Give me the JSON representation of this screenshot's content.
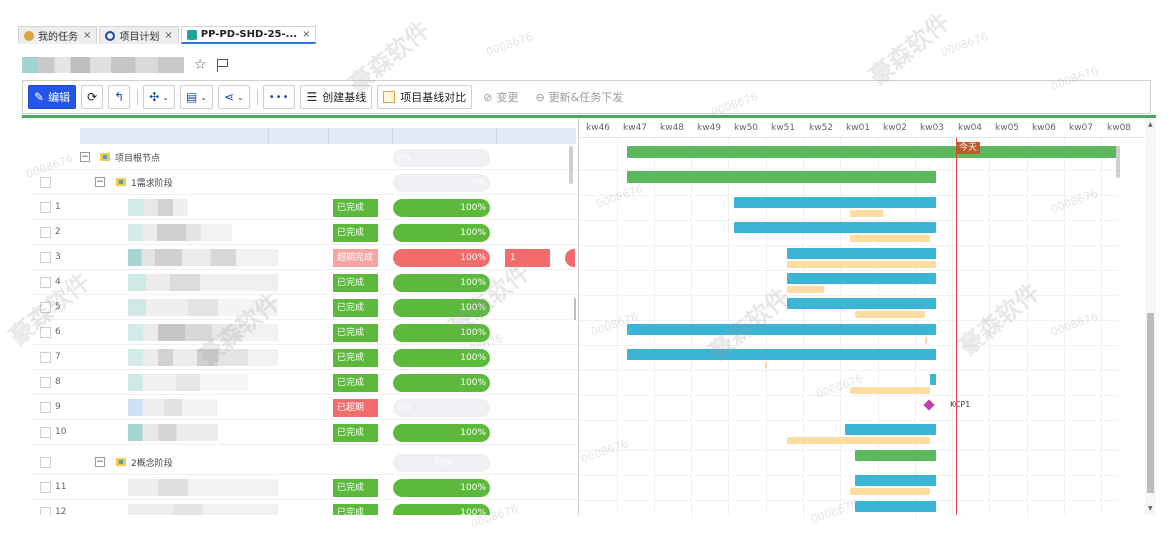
{
  "tabs": [
    {
      "label": "我的任务",
      "icon": "task-icon",
      "icon_color": "#d9a441",
      "close": "×",
      "active": false
    },
    {
      "label": "项目计划",
      "icon": "search-icon",
      "icon_color": "#1b4aa8",
      "close": "×",
      "active": false
    },
    {
      "label": "PP-PD-SHD-25-...",
      "icon": "document-icon",
      "icon_color": "#1fa69a",
      "close": "×",
      "active": true
    }
  ],
  "title_icons": {
    "star": "☆"
  },
  "toolbar": {
    "edit_label": "编辑",
    "create_baseline_label": "创建基线",
    "baseline_compare_label": "项目基线对比",
    "change_label": "变更",
    "update_dispatch_label": "更新&任务下发",
    "more": "•••"
  },
  "tree": {
    "root": {
      "label": "项目根节点",
      "progress": "0%"
    },
    "phase1": {
      "label": "1需求阶段",
      "progress": "0%"
    },
    "phase2": {
      "label": "2概念阶段",
      "progress": "70%"
    }
  },
  "rows": [
    {
      "num": "1",
      "status": "已完成",
      "progress": "100%"
    },
    {
      "num": "2",
      "status": "已完成",
      "progress": "100%"
    },
    {
      "num": "3",
      "status": "超期完成",
      "progress": "100%",
      "late_value": "1"
    },
    {
      "num": "4",
      "status": "已完成",
      "progress": "100%"
    },
    {
      "num": "5",
      "status": "已完成",
      "progress": "100%"
    },
    {
      "num": "6",
      "status": "已完成",
      "progress": "100%"
    },
    {
      "num": "7",
      "status": "已完成",
      "progress": "100%"
    },
    {
      "num": "8",
      "status": "已完成",
      "progress": "100%"
    },
    {
      "num": "9",
      "status": "已超期",
      "progress": "0%"
    },
    {
      "num": "10",
      "status": "已完成",
      "progress": "100%"
    },
    {
      "num": "11",
      "status": "已完成",
      "progress": "100%"
    },
    {
      "num": "12",
      "status": "已完成",
      "progress": "100%"
    }
  ],
  "colors": {
    "done": "#5cb93b",
    "late_done": "#f4a6a6",
    "overdue": "#f26c6c",
    "progress_green": "#5cb93b",
    "progress_red": "#f26c6c",
    "gantt_green": "#5cb85c",
    "gantt_blue": "#3bb5d4",
    "gantt_baseline": "#fcdca0",
    "today": "#e64545"
  },
  "gantt": {
    "weeks": [
      "kw46",
      "kw47",
      "kw48",
      "kw49",
      "kw50",
      "kw51",
      "kw52",
      "kw01",
      "kw02",
      "kw03",
      "kw04",
      "kw05",
      "kw06",
      "kw07",
      "kw08"
    ],
    "today_label": "今天",
    "milestone_label": "KCP1"
  },
  "watermarks": {
    "code": "0008676",
    "brand": "豪森软件"
  }
}
